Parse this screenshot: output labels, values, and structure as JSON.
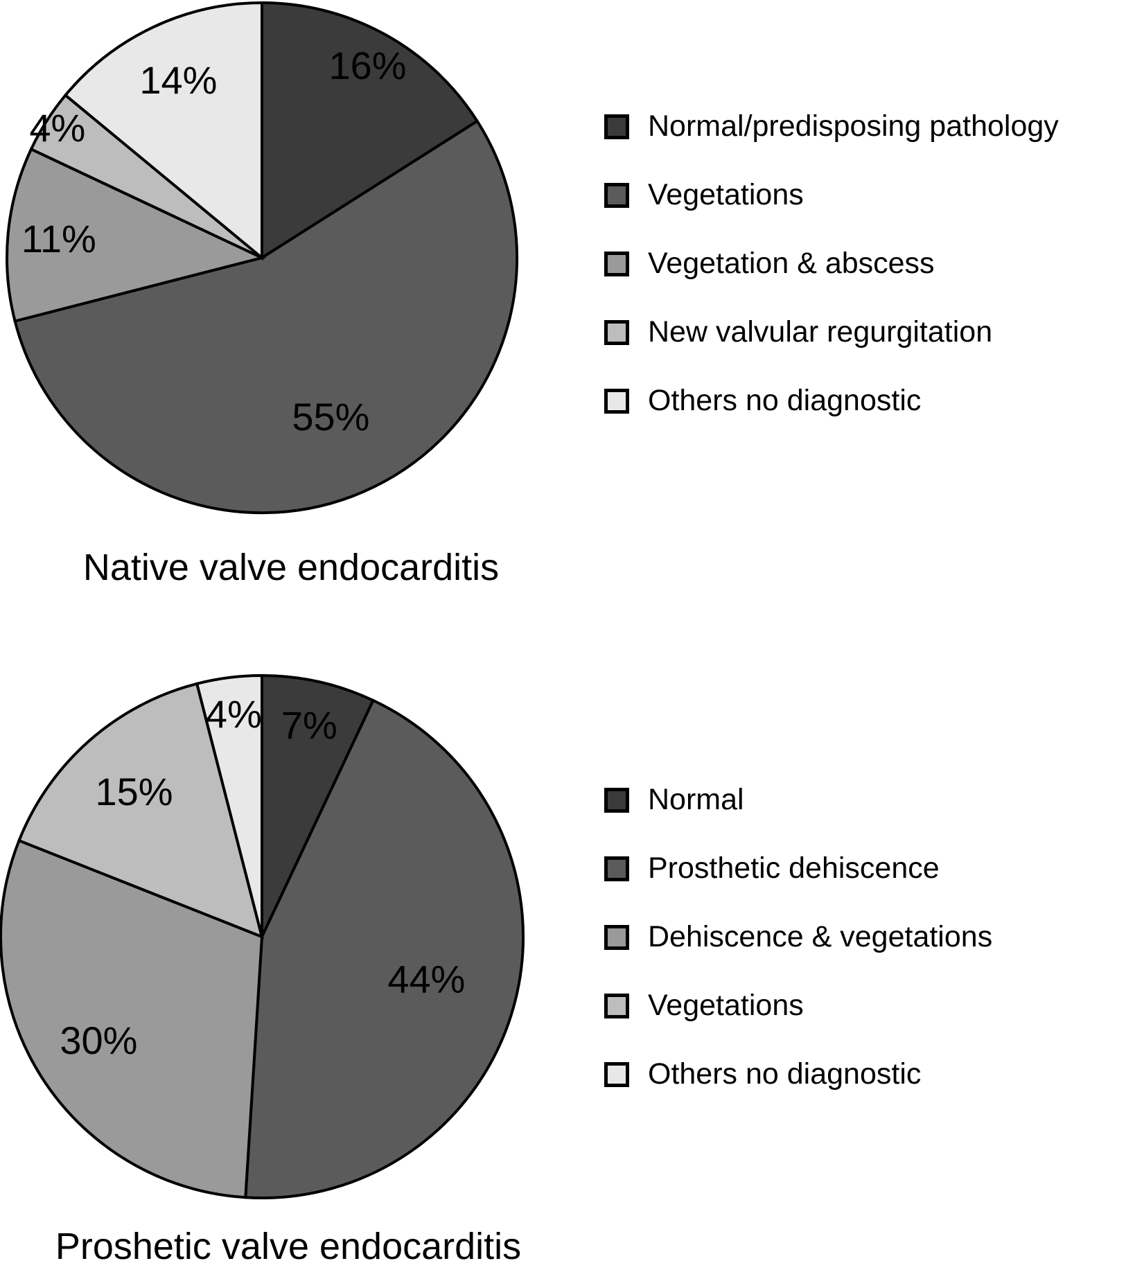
{
  "figure_background": "#ffffff",
  "styles": {
    "slice_stroke": "#000000",
    "label_color": "#000000"
  },
  "chart_data": [
    {
      "type": "pie",
      "title": "Native valve endocarditis",
      "categories": [
        "Normal/predisposing pathology",
        "Vegetations",
        "Vegetation & abscess",
        "New valvular regurgitation",
        "Others no diagnostic"
      ],
      "values": [
        16,
        55,
        11,
        4,
        14
      ],
      "labels": [
        "16%",
        "55%",
        "11%",
        "4%",
        "14%"
      ],
      "colors": [
        "#3b3b3b",
        "#5b5b5b",
        "#9a9a9a",
        "#bdbdbd",
        "#e8e8e8"
      ],
      "start_angle_deg": 0,
      "direction": "clockwise",
      "legend_position": "right",
      "label_radius_fraction": [
        0.86,
        0.68,
        0.8,
        0.95,
        0.77
      ]
    },
    {
      "type": "pie",
      "title": "Proshetic valve endocarditis",
      "categories": [
        "Normal",
        "Prosthetic dehiscence",
        "Dehiscence & vegetations",
        "Vegetations",
        "Others no diagnostic"
      ],
      "values": [
        7,
        44,
        30,
        15,
        4
      ],
      "labels": [
        "7%",
        "44%",
        "30%",
        "15%",
        "4%"
      ],
      "colors": [
        "#3b3b3b",
        "#5b5b5b",
        "#9a9a9a",
        "#bdbdbd",
        "#e8e8e8"
      ],
      "start_angle_deg": 0,
      "direction": "clockwise",
      "legend_position": "right",
      "label_radius_fraction": [
        0.83,
        0.65,
        0.74,
        0.74,
        0.86
      ]
    }
  ]
}
